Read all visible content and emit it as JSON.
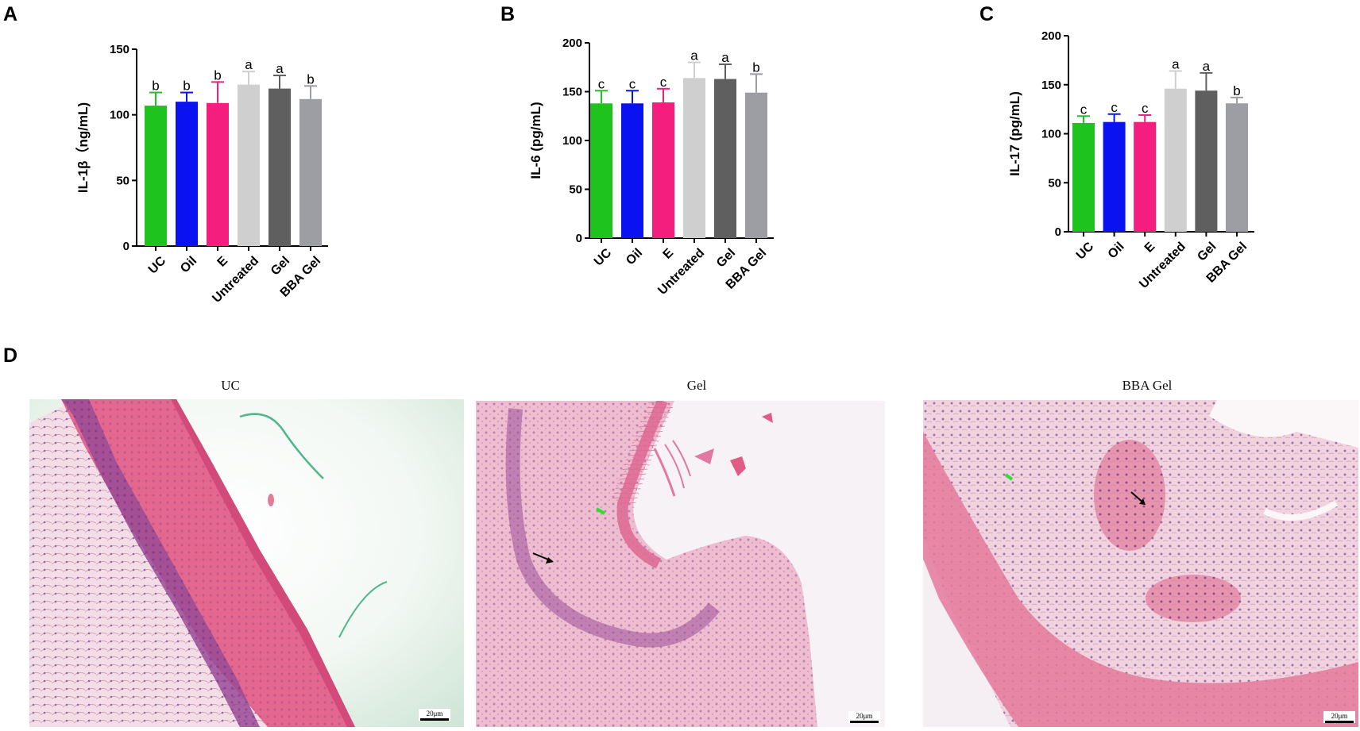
{
  "panels": {
    "a": "A",
    "b": "B",
    "c": "C",
    "d": "D"
  },
  "chart_data": [
    {
      "type": "bar",
      "panel": "A",
      "categories": [
        "UC",
        "Oil",
        "E",
        "Untreated",
        "Gel",
        "BBA Gel"
      ],
      "values": [
        107,
        110,
        109,
        123,
        120,
        112
      ],
      "error": [
        10,
        7,
        16,
        10,
        10,
        10
      ],
      "letters": [
        "b",
        "b",
        "b",
        "a",
        "a",
        "b"
      ],
      "colors": [
        "#1ec31e",
        "#0a12f2",
        "#f41e7e",
        "#cfcfcf",
        "#5f5f5f",
        "#9d9ea3"
      ],
      "ylabel": "IL-1β（ng/mL)",
      "ylim": [
        0,
        150
      ],
      "yticks": [
        "0",
        "50",
        "100",
        "150"
      ]
    },
    {
      "type": "bar",
      "panel": "B",
      "categories": [
        "UC",
        "Oil",
        "E",
        "Untreated",
        "Gel",
        "BBA Gel"
      ],
      "values": [
        138,
        138,
        139,
        164,
        163,
        149
      ],
      "error": [
        13,
        13,
        14,
        16,
        15,
        19
      ],
      "letters": [
        "c",
        "c",
        "c",
        "a",
        "a",
        "b"
      ],
      "colors": [
        "#1ec31e",
        "#0a12f2",
        "#f41e7e",
        "#cfcfcf",
        "#5f5f5f",
        "#9d9ea3"
      ],
      "ylabel": "IL-6 (pg/mL)",
      "ylim": [
        0,
        200
      ],
      "yticks": [
        "0",
        "50",
        "100",
        "150",
        "200"
      ]
    },
    {
      "type": "bar",
      "panel": "C",
      "categories": [
        "UC",
        "Oil",
        "E",
        "Untreated",
        "Gel",
        "BBA Gel"
      ],
      "values": [
        111,
        112,
        112,
        146,
        144,
        131
      ],
      "error": [
        7,
        8,
        7,
        18,
        18,
        6
      ],
      "letters": [
        "c",
        "c",
        "c",
        "a",
        "a",
        "b"
      ],
      "colors": [
        "#1ec31e",
        "#0a12f2",
        "#f41e7e",
        "#cfcfcf",
        "#5f5f5f",
        "#9d9ea3"
      ],
      "ylabel": "IL-17 (pg/mL)",
      "ylim": [
        0,
        200
      ],
      "yticks": [
        "0",
        "50",
        "100",
        "150",
        "200"
      ]
    }
  ],
  "micrographs": [
    {
      "title": "UC",
      "scale": "20μm"
    },
    {
      "title": "Gel",
      "scale": "20μm"
    },
    {
      "title": "BBA Gel",
      "scale": "20μm"
    }
  ],
  "colors": {
    "tissue_pink": "#e0688f",
    "background_green": "#e3f0e6",
    "cell_purple": "#7a3f8f"
  }
}
